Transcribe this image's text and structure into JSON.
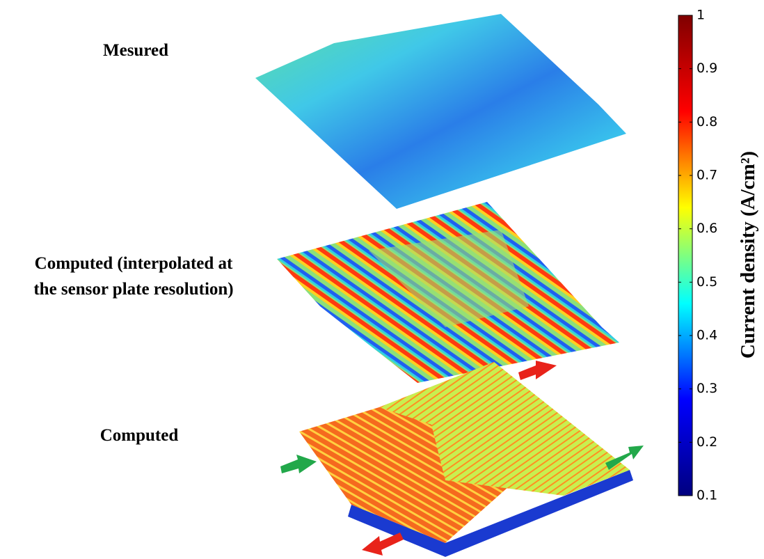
{
  "chart_data": {
    "type": "colorbar",
    "annotations": [
      "Mesured",
      "Computed (interpolated at",
      "the sensor plate resolution)",
      "Computed"
    ],
    "ylabel": "Current density  (A/cm²)",
    "ylim": [
      0.1,
      1
    ],
    "yticks": [
      0.1,
      0.2,
      0.3,
      0.4,
      0.5,
      0.6,
      0.7,
      0.8,
      0.9,
      1
    ],
    "colors": [
      "#00007f",
      "#0000ff",
      "#00ffff",
      "#ffff00",
      "#ff0000",
      "#7f0000"
    ]
  }
}
